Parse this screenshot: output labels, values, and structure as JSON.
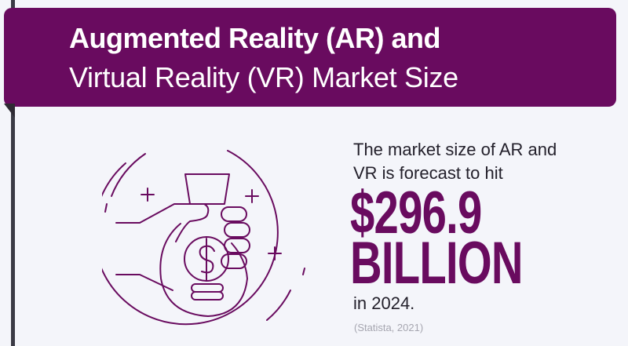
{
  "header": {
    "title_line1": "Augmented Reality (AR) and",
    "title_line2": "Virtual Reality (VR) Market Size"
  },
  "stat": {
    "lead_line1": "The market size of AR and",
    "lead_line2": "VR is forecast to hit",
    "value": "$296.9",
    "unit": "BILLION",
    "suffix": "in 2024.",
    "source": "(Statista, 2021)"
  },
  "icon": "hand-holding-money-bag-icon",
  "colors": {
    "brand": "#690b5f",
    "background": "#f4f5fa",
    "text": "#23202b",
    "source": "#a6a6b0"
  }
}
